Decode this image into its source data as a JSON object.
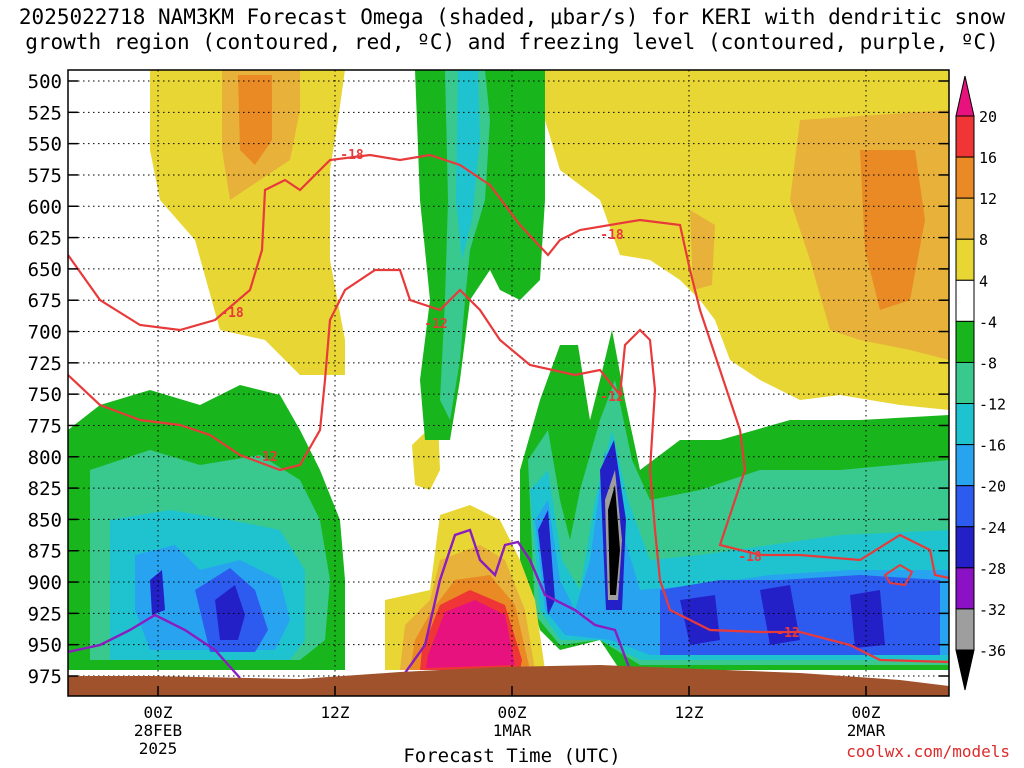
{
  "title_line1": "2025022718 NAM3KM Forecast Omega (shaded, μbar/s) for KERI with dendritic snow",
  "title_line2": "growth region (contoured, red, ºC) and freezing level (contoured, purple, ºC)",
  "credit": "coolwx.com/models",
  "chart_data": {
    "type": "heatmap",
    "xlabel": "Forecast Time (UTC)",
    "ylabel": "",
    "x_ticks": [
      {
        "lines": [
          "00Z",
          "28FEB",
          "2025"
        ],
        "hour": 6
      },
      {
        "lines": [
          "12Z"
        ],
        "hour": 18
      },
      {
        "lines": [
          "00Z",
          "1MAR"
        ],
        "hour": 30
      },
      {
        "lines": [
          "12Z"
        ],
        "hour": 42
      },
      {
        "lines": [
          "00Z",
          "2MAR"
        ],
        "hour": 54
      }
    ],
    "x_range_hours": [
      0,
      60
    ],
    "y_ticks": [
      500,
      525,
      550,
      575,
      600,
      625,
      650,
      675,
      700,
      725,
      750,
      775,
      800,
      825,
      850,
      875,
      900,
      925,
      950,
      975
    ],
    "colorbar": {
      "labels": [
        "20",
        "16",
        "12",
        "8",
        "4",
        "-4",
        "-8",
        "-12",
        "-16",
        "-20",
        "-24",
        "-28",
        "-32",
        "-36"
      ],
      "colors": [
        "#e8127e",
        "#ef3535",
        "#e98a25",
        "#e7b13a",
        "#e8d635",
        "#ffffff",
        "#19b51c",
        "#39c98f",
        "#1ec3cf",
        "#28a3f0",
        "#2e5bef",
        "#2420c8",
        "#8a12c4",
        "#9e9e9e",
        "#000000"
      ]
    },
    "contour_labels": [
      {
        "text": "-18",
        "color": "#e83a3a"
      },
      {
        "text": "-18",
        "color": "#e83a3a"
      },
      {
        "text": "-18",
        "color": "#e83a3a"
      },
      {
        "text": "-18",
        "color": "#e83a3a"
      },
      {
        "text": "-12",
        "color": "#e83a3a"
      },
      {
        "text": "-12",
        "color": "#e83a3a"
      },
      {
        "text": "-12",
        "color": "#e83a3a"
      },
      {
        "text": "-12",
        "color": "#e83a3a"
      }
    ],
    "grid": true,
    "ground_color": "#a0522d",
    "freezing_level_color": "#8b1cc0",
    "dgz_color": "#e83a3a"
  }
}
